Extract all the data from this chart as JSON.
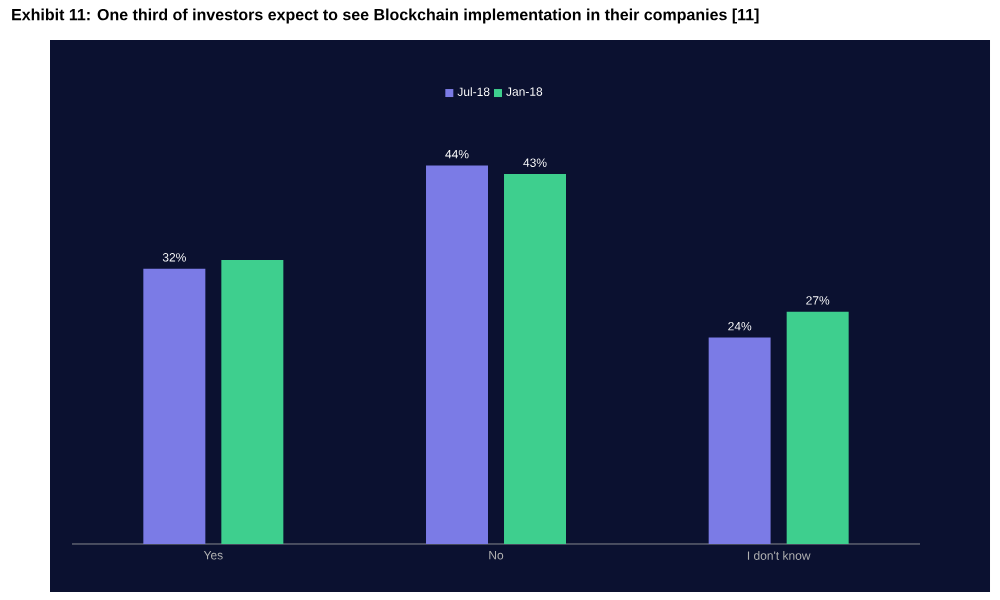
{
  "chart_data": {
    "type": "bar",
    "title": "Exhibit 11: One third of investors expect to see Blockchain implementation in their companies [11]",
    "categories": [
      "Yes",
      "No",
      "I don't know"
    ],
    "series": [
      {
        "name": "Jul-18",
        "color": "#7b7be6",
        "values": [
          32,
          44,
          24
        ],
        "value_labels": [
          "32%",
          "44%",
          "24%"
        ]
      },
      {
        "name": "Jan-18",
        "color": "#3ecf8e",
        "values": [
          33,
          43,
          27
        ],
        "value_labels": [
          null,
          "43%",
          "27%"
        ]
      }
    ],
    "legend": "top"
  }
}
